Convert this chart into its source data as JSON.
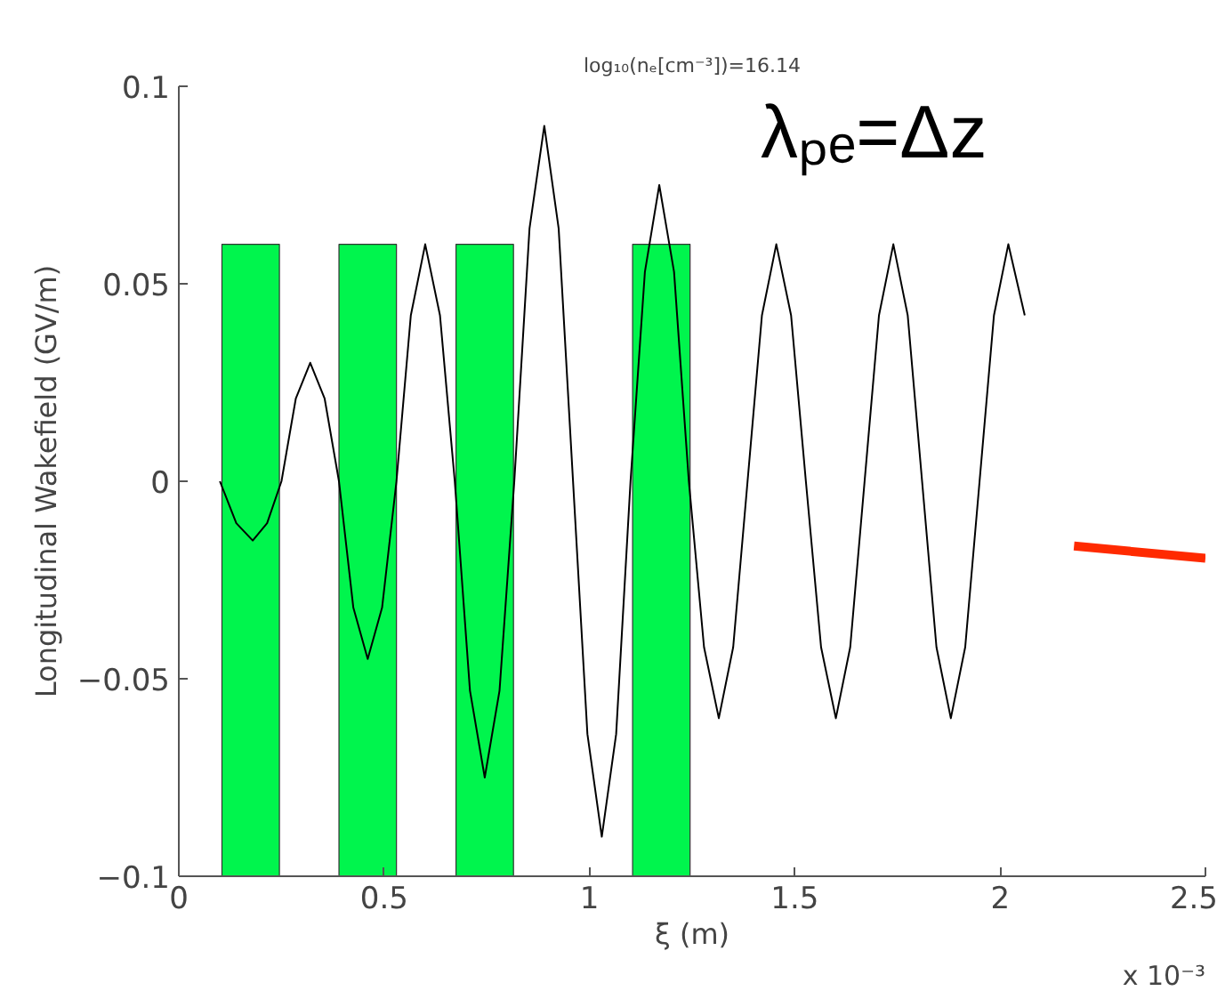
{
  "chart_data": {
    "type": "line",
    "title": "log₁₀(nₑ[cm⁻³])=16.14",
    "xlabel": "ξ (m)",
    "ylabel": "Longitudinal Wakefield (GV/m)",
    "annotations": [
      "λₚₑ=Δz",
      "x 10⁻³"
    ],
    "xlim": [
      0,
      2.5
    ],
    "xticks": [
      0,
      0.5,
      1,
      1.5,
      2,
      2.5
    ],
    "ylim": [
      -0.1,
      0.1
    ],
    "yticks": [
      {
        "value": -0.1,
        "label": "−0.1"
      },
      {
        "value": -0.05,
        "label": "−0.05"
      },
      0,
      0.05,
      0.1
    ],
    "grid": false,
    "series": [
      {
        "type": "bar",
        "color": "#00f54d",
        "x": [
          0.175,
          0.46,
          0.745,
          1.175
        ],
        "base": [
          -0.1,
          -0.1,
          -0.1,
          -0.1
        ],
        "values": [
          0.16,
          0.16,
          0.16,
          0.16
        ]
      },
      {
        "color": "#000000",
        "x": [
          0.1,
          0.14,
          0.18,
          0.215,
          0.25,
          0.285,
          0.32,
          0.355,
          0.39,
          0.425,
          0.46,
          0.495,
          0.53,
          0.565,
          0.6,
          0.636,
          0.672,
          0.709,
          0.745,
          0.781,
          0.817,
          0.854,
          0.89,
          0.925,
          0.96,
          0.995,
          1.03,
          1.065,
          1.1,
          1.135,
          1.17,
          1.206,
          1.242,
          1.279,
          1.315,
          1.35,
          1.385,
          1.42,
          1.455,
          1.491,
          1.527,
          1.564,
          1.6,
          1.635,
          1.67,
          1.705,
          1.74,
          1.775,
          1.81,
          1.845,
          1.88,
          1.915,
          1.95,
          1.985,
          2.02,
          2.06
        ],
        "values": [
          0,
          -0.0106,
          -0.015,
          -0.0106,
          0,
          0.021,
          0.03,
          0.021,
          0,
          -0.032,
          -0.045,
          -0.032,
          0,
          0.042,
          0.06,
          0.042,
          0,
          -0.053,
          -0.075,
          -0.053,
          0,
          0.064,
          0.09,
          0.064,
          0,
          -0.064,
          -0.09,
          -0.064,
          0,
          0.053,
          0.075,
          0.053,
          0,
          -0.042,
          -0.06,
          -0.042,
          0,
          0.042,
          0.06,
          0.042,
          0,
          -0.042,
          -0.06,
          -0.042,
          0,
          0.042,
          0.06,
          0.042,
          0,
          -0.042,
          -0.06,
          -0.042,
          0,
          0.042,
          0.06,
          0.042
        ]
      },
      {
        "type": "line",
        "color": "#ff2a00",
        "x": [
          2.18,
          2.5
        ],
        "values": [
          -0.0164,
          -0.0195
        ]
      }
    ]
  }
}
